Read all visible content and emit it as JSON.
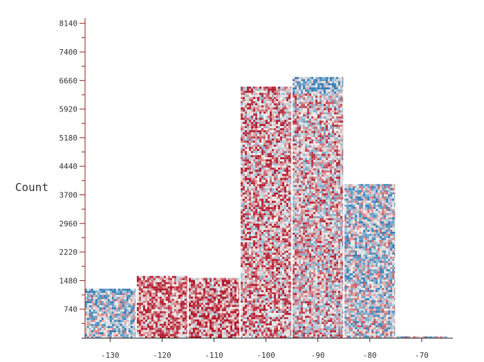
{
  "chart_data": {
    "type": "bar",
    "title": "",
    "xlabel": "",
    "ylabel": "Count",
    "bins": [
      {
        "x0": -135,
        "x1": -125,
        "value": 1270
      },
      {
        "x0": -125,
        "x1": -115,
        "value": 1600
      },
      {
        "x0": -115,
        "x1": -105,
        "value": 1550
      },
      {
        "x0": -105,
        "x1": -95,
        "value": 6500
      },
      {
        "x0": -95,
        "x1": -85,
        "value": 6750
      },
      {
        "x0": -85,
        "x1": -75,
        "value": 3980
      },
      {
        "x0": -75,
        "x1": -65,
        "value": 40
      }
    ],
    "xticks": [
      "-130",
      "-120",
      "-110",
      "-100",
      "-90",
      "-80",
      "-70"
    ],
    "xtick_values": [
      -130,
      -120,
      -110,
      -100,
      -90,
      -80,
      -70
    ],
    "yticks": [
      "740",
      "1480",
      "2220",
      "2960",
      "3700",
      "4440",
      "5180",
      "5920",
      "6660",
      "7400",
      "8140"
    ],
    "ytick_values": [
      740,
      1480,
      2220,
      2960,
      3700,
      4440,
      5180,
      5920,
      6660,
      7400,
      8140
    ],
    "xlim": [
      -135.5,
      -64
    ],
    "ylim": [
      0,
      8350
    ],
    "grid": false,
    "legend": "none",
    "colors": {
      "low": "#2c7bb6",
      "mid": "#f7f4ee",
      "high": "#b2182b",
      "axis": "#8b1a1a",
      "text": "#333333"
    }
  }
}
